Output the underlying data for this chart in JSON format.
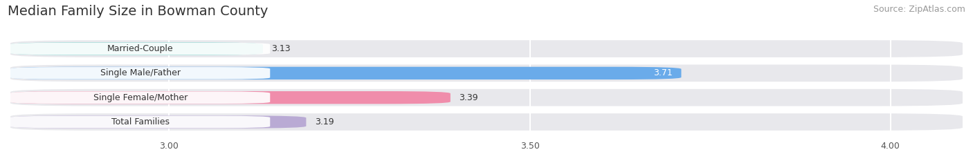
{
  "title": "Median Family Size in Bowman County",
  "source": "Source: ZipAtlas.com",
  "categories": [
    "Married-Couple",
    "Single Male/Father",
    "Single Female/Mother",
    "Total Families"
  ],
  "values": [
    3.13,
    3.71,
    3.39,
    3.19
  ],
  "bar_colors": [
    "#72cfc9",
    "#6aabea",
    "#f08dab",
    "#b9aad4"
  ],
  "bar_bg_color": "#e8e8ec",
  "xlim_data": [
    2.78,
    4.1
  ],
  "xstart": 2.78,
  "xticks": [
    3.0,
    3.5,
    4.0
  ],
  "xtick_labels": [
    "3.00",
    "3.50",
    "4.00"
  ],
  "background_color": "#ffffff",
  "title_fontsize": 14,
  "source_fontsize": 9,
  "label_fontsize": 9,
  "value_fontsize": 9,
  "tick_fontsize": 9,
  "bar_height": 0.52,
  "value_inside_threshold": 3.6
}
